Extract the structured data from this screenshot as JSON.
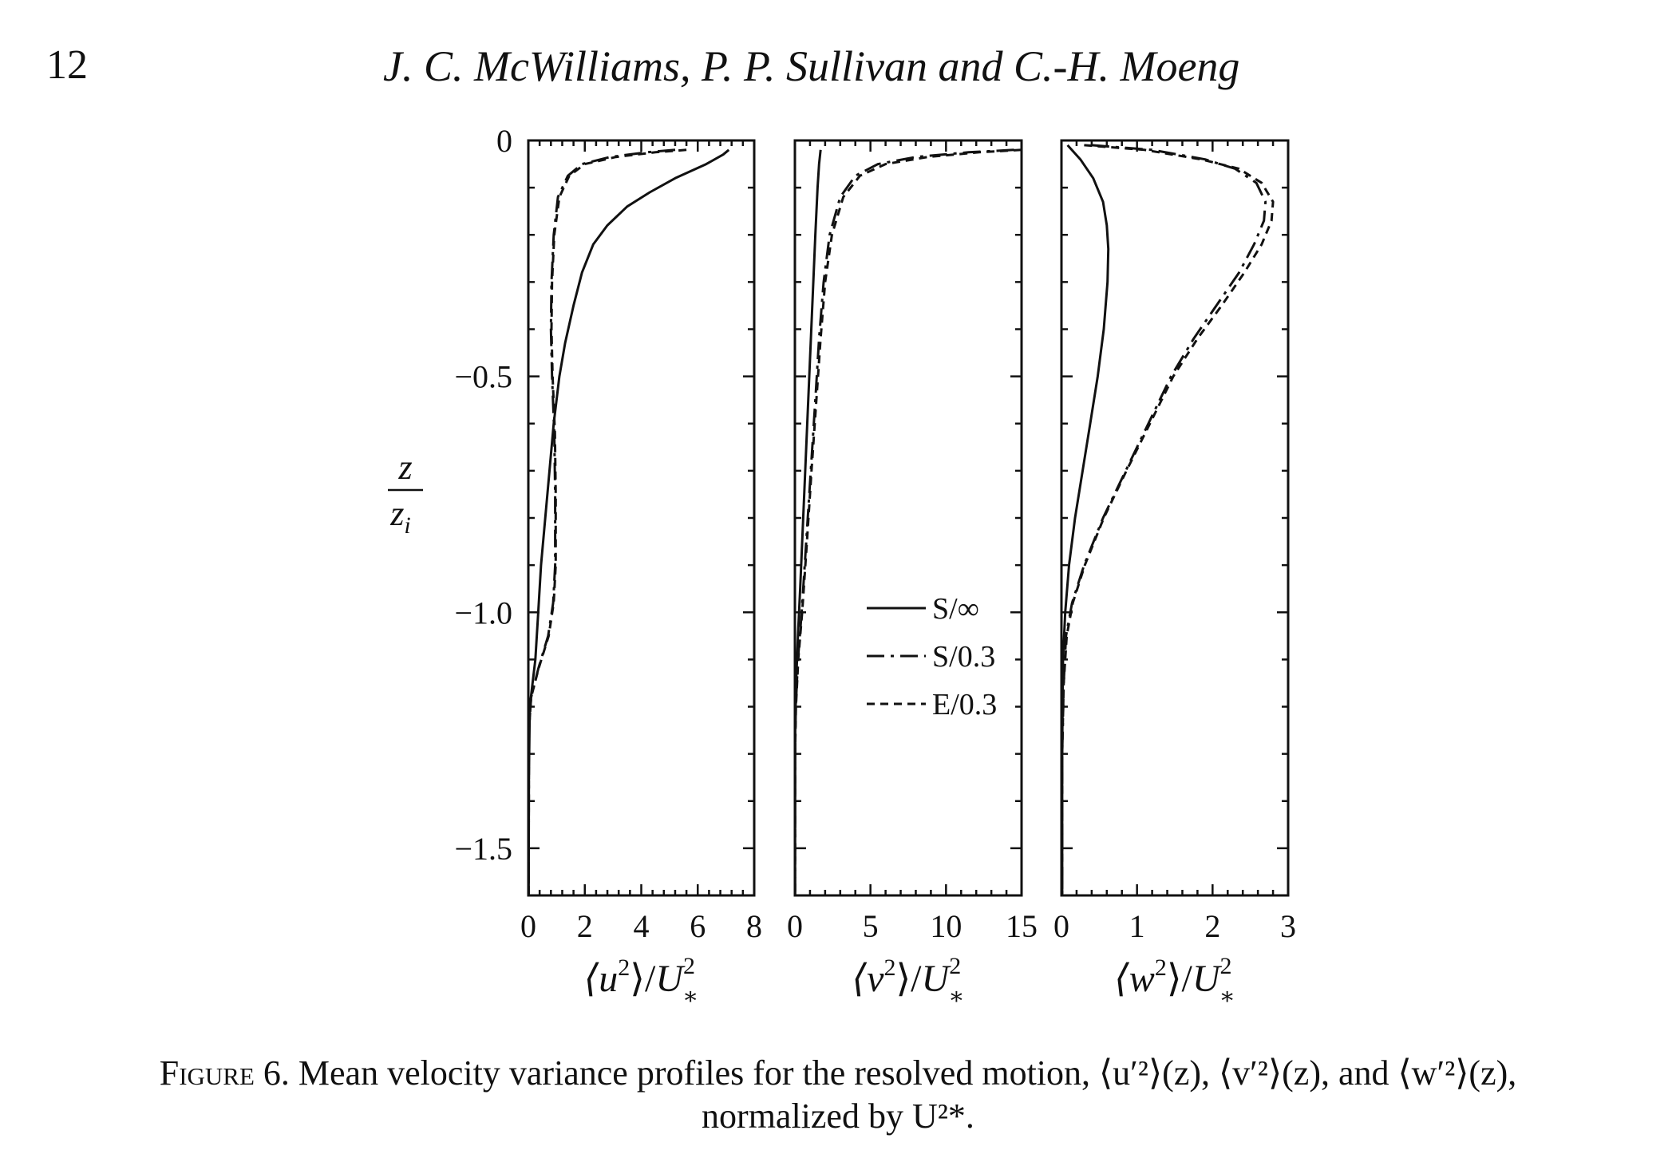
{
  "header": {
    "page_number": "12",
    "authors": "J. C. McWilliams, P. P. Sullivan and C.-H. Moeng"
  },
  "caption": {
    "label": "Figure 6.",
    "line1": " Mean velocity variance profiles for the resolved motion, ⟨u′²⟩(z), ⟨v′²⟩(z), and ⟨w′²⟩(z),",
    "line2": "normalized by U²*."
  },
  "chart_data": {
    "type": "line",
    "y_axis": {
      "label_top": "z",
      "label_bottom": "z",
      "label_sub": "i",
      "ylim": [
        -1.6,
        0
      ],
      "ticks": [
        0,
        -0.5,
        -1.0,
        -1.5
      ],
      "tick_labels": [
        "0",
        "−0.5",
        "−1.0",
        "−1.5"
      ]
    },
    "legend": {
      "placement": "middle panel, lower center",
      "entries": [
        {
          "label": "S/∞",
          "style": "solid"
        },
        {
          "label": "S/0.3",
          "style": "dash-dot"
        },
        {
          "label": "E/0.3",
          "style": "dashed"
        }
      ]
    },
    "panels": [
      {
        "xlabel": "⟨u²⟩/U²*",
        "xlabel_base": "⟨u",
        "xlim": [
          0,
          8
        ],
        "ticks": [
          0,
          2,
          4,
          6,
          8
        ],
        "tick_labels": [
          "0",
          "2",
          "4",
          "6",
          "8"
        ],
        "series": [
          {
            "style": "solid",
            "points": [
              [
                7.1,
                -0.02
              ],
              [
                6.9,
                -0.03
              ],
              [
                6.3,
                -0.05
              ],
              [
                5.2,
                -0.08
              ],
              [
                4.3,
                -0.11
              ],
              [
                3.5,
                -0.14
              ],
              [
                2.8,
                -0.18
              ],
              [
                2.3,
                -0.22
              ],
              [
                1.9,
                -0.28
              ],
              [
                1.6,
                -0.35
              ],
              [
                1.3,
                -0.43
              ],
              [
                1.1,
                -0.5
              ],
              [
                0.9,
                -0.6
              ],
              [
                0.75,
                -0.7
              ],
              [
                0.6,
                -0.8
              ],
              [
                0.45,
                -0.9
              ],
              [
                0.35,
                -1.0
              ],
              [
                0.25,
                -1.1
              ],
              [
                0.15,
                -1.15
              ],
              [
                0.05,
                -1.2
              ],
              [
                0.02,
                -1.35
              ],
              [
                0.01,
                -1.6
              ]
            ]
          },
          {
            "style": "dash-dot",
            "points": [
              [
                5.2,
                -0.02
              ],
              [
                4.2,
                -0.025
              ],
              [
                2.9,
                -0.035
              ],
              [
                1.9,
                -0.05
              ],
              [
                1.4,
                -0.075
              ],
              [
                1.05,
                -0.12
              ],
              [
                0.9,
                -0.2
              ],
              [
                0.82,
                -0.3
              ],
              [
                0.8,
                -0.4
              ],
              [
                0.84,
                -0.5
              ],
              [
                0.92,
                -0.62
              ],
              [
                0.95,
                -0.75
              ],
              [
                0.95,
                -0.9
              ],
              [
                0.88,
                -0.98
              ],
              [
                0.7,
                -1.05
              ],
              [
                0.35,
                -1.12
              ],
              [
                0.1,
                -1.18
              ],
              [
                0.02,
                -1.25
              ],
              [
                0.01,
                -1.6
              ]
            ]
          },
          {
            "style": "dashed",
            "points": [
              [
                5.6,
                -0.02
              ],
              [
                4.5,
                -0.025
              ],
              [
                3.1,
                -0.035
              ],
              [
                2.0,
                -0.05
              ],
              [
                1.45,
                -0.075
              ],
              [
                1.1,
                -0.12
              ],
              [
                0.92,
                -0.2
              ],
              [
                0.84,
                -0.3
              ],
              [
                0.82,
                -0.4
              ],
              [
                0.86,
                -0.5
              ],
              [
                0.94,
                -0.62
              ],
              [
                0.97,
                -0.75
              ],
              [
                0.97,
                -0.9
              ],
              [
                0.9,
                -0.98
              ],
              [
                0.72,
                -1.05
              ],
              [
                0.36,
                -1.12
              ],
              [
                0.1,
                -1.18
              ],
              [
                0.02,
                -1.25
              ],
              [
                0.01,
                -1.6
              ]
            ]
          }
        ]
      },
      {
        "xlabel": "⟨v²⟩/U²*",
        "xlabel_base": "⟨v",
        "xlim": [
          0,
          15
        ],
        "ticks": [
          0,
          5,
          10,
          15
        ],
        "tick_labels": [
          "0",
          "5",
          "10",
          "15"
        ],
        "series": [
          {
            "style": "solid",
            "points": [
              [
                1.7,
                -0.02
              ],
              [
                1.6,
                -0.05
              ],
              [
                1.5,
                -0.1
              ],
              [
                1.35,
                -0.2
              ],
              [
                1.15,
                -0.35
              ],
              [
                0.95,
                -0.5
              ],
              [
                0.75,
                -0.65
              ],
              [
                0.55,
                -0.8
              ],
              [
                0.35,
                -0.95
              ],
              [
                0.2,
                -1.05
              ],
              [
                0.08,
                -1.15
              ],
              [
                0.02,
                -1.25
              ],
              [
                0.01,
                -1.6
              ]
            ]
          },
          {
            "style": "dash-dot",
            "points": [
              [
                14.5,
                -0.02
              ],
              [
                11.5,
                -0.025
              ],
              [
                8.0,
                -0.035
              ],
              [
                5.5,
                -0.05
              ],
              [
                4.0,
                -0.075
              ],
              [
                3.0,
                -0.12
              ],
              [
                2.3,
                -0.2
              ],
              [
                1.9,
                -0.3
              ],
              [
                1.6,
                -0.42
              ],
              [
                1.35,
                -0.55
              ],
              [
                1.05,
                -0.7
              ],
              [
                0.75,
                -0.85
              ],
              [
                0.45,
                -1.0
              ],
              [
                0.2,
                -1.1
              ],
              [
                0.06,
                -1.2
              ],
              [
                0.01,
                -1.3
              ],
              [
                0.01,
                -1.6
              ]
            ]
          },
          {
            "style": "dashed",
            "points": [
              [
                15.0,
                -0.02
              ],
              [
                12.2,
                -0.025
              ],
              [
                8.8,
                -0.035
              ],
              [
                6.0,
                -0.05
              ],
              [
                4.3,
                -0.075
              ],
              [
                3.2,
                -0.12
              ],
              [
                2.45,
                -0.2
              ],
              [
                2.0,
                -0.3
              ],
              [
                1.7,
                -0.42
              ],
              [
                1.42,
                -0.55
              ],
              [
                1.1,
                -0.7
              ],
              [
                0.8,
                -0.85
              ],
              [
                0.48,
                -1.0
              ],
              [
                0.22,
                -1.1
              ],
              [
                0.07,
                -1.2
              ],
              [
                0.01,
                -1.3
              ],
              [
                0.01,
                -1.6
              ]
            ]
          }
        ]
      },
      {
        "xlabel": "⟨w²⟩/U²*",
        "xlabel_base": "⟨w",
        "xlim": [
          0,
          3
        ],
        "ticks": [
          0,
          1,
          2,
          3
        ],
        "tick_labels": [
          "0",
          "1",
          "2",
          "3"
        ],
        "series": [
          {
            "style": "solid",
            "points": [
              [
                0.08,
                -0.01
              ],
              [
                0.25,
                -0.04
              ],
              [
                0.42,
                -0.08
              ],
              [
                0.55,
                -0.13
              ],
              [
                0.6,
                -0.18
              ],
              [
                0.62,
                -0.23
              ],
              [
                0.61,
                -0.3
              ],
              [
                0.56,
                -0.4
              ],
              [
                0.48,
                -0.5
              ],
              [
                0.38,
                -0.6
              ],
              [
                0.28,
                -0.7
              ],
              [
                0.18,
                -0.8
              ],
              [
                0.1,
                -0.9
              ],
              [
                0.05,
                -1.0
              ],
              [
                0.02,
                -1.1
              ],
              [
                0.01,
                -1.3
              ],
              [
                0.01,
                -1.6
              ]
            ]
          },
          {
            "style": "dash-dot",
            "points": [
              [
                0.4,
                -0.01
              ],
              [
                1.2,
                -0.02
              ],
              [
                1.9,
                -0.04
              ],
              [
                2.3,
                -0.06
              ],
              [
                2.58,
                -0.09
              ],
              [
                2.7,
                -0.13
              ],
              [
                2.68,
                -0.17
              ],
              [
                2.55,
                -0.22
              ],
              [
                2.35,
                -0.28
              ],
              [
                2.05,
                -0.35
              ],
              [
                1.75,
                -0.42
              ],
              [
                1.45,
                -0.5
              ],
              [
                1.15,
                -0.6
              ],
              [
                0.85,
                -0.7
              ],
              [
                0.55,
                -0.8
              ],
              [
                0.3,
                -0.9
              ],
              [
                0.14,
                -0.98
              ],
              [
                0.06,
                -1.05
              ],
              [
                0.03,
                -1.15
              ],
              [
                0.01,
                -1.3
              ],
              [
                0.01,
                -1.6
              ]
            ]
          },
          {
            "style": "dashed",
            "points": [
              [
                0.3,
                -0.01
              ],
              [
                1.1,
                -0.02
              ],
              [
                1.85,
                -0.04
              ],
              [
                2.35,
                -0.06
              ],
              [
                2.65,
                -0.09
              ],
              [
                2.8,
                -0.13
              ],
              [
                2.78,
                -0.17
              ],
              [
                2.65,
                -0.22
              ],
              [
                2.42,
                -0.28
              ],
              [
                2.12,
                -0.35
              ],
              [
                1.8,
                -0.42
              ],
              [
                1.48,
                -0.5
              ],
              [
                1.17,
                -0.6
              ],
              [
                0.86,
                -0.7
              ],
              [
                0.56,
                -0.8
              ],
              [
                0.31,
                -0.9
              ],
              [
                0.15,
                -0.98
              ],
              [
                0.07,
                -1.05
              ],
              [
                0.03,
                -1.15
              ],
              [
                0.01,
                -1.3
              ],
              [
                0.01,
                -1.6
              ]
            ]
          }
        ]
      }
    ]
  }
}
